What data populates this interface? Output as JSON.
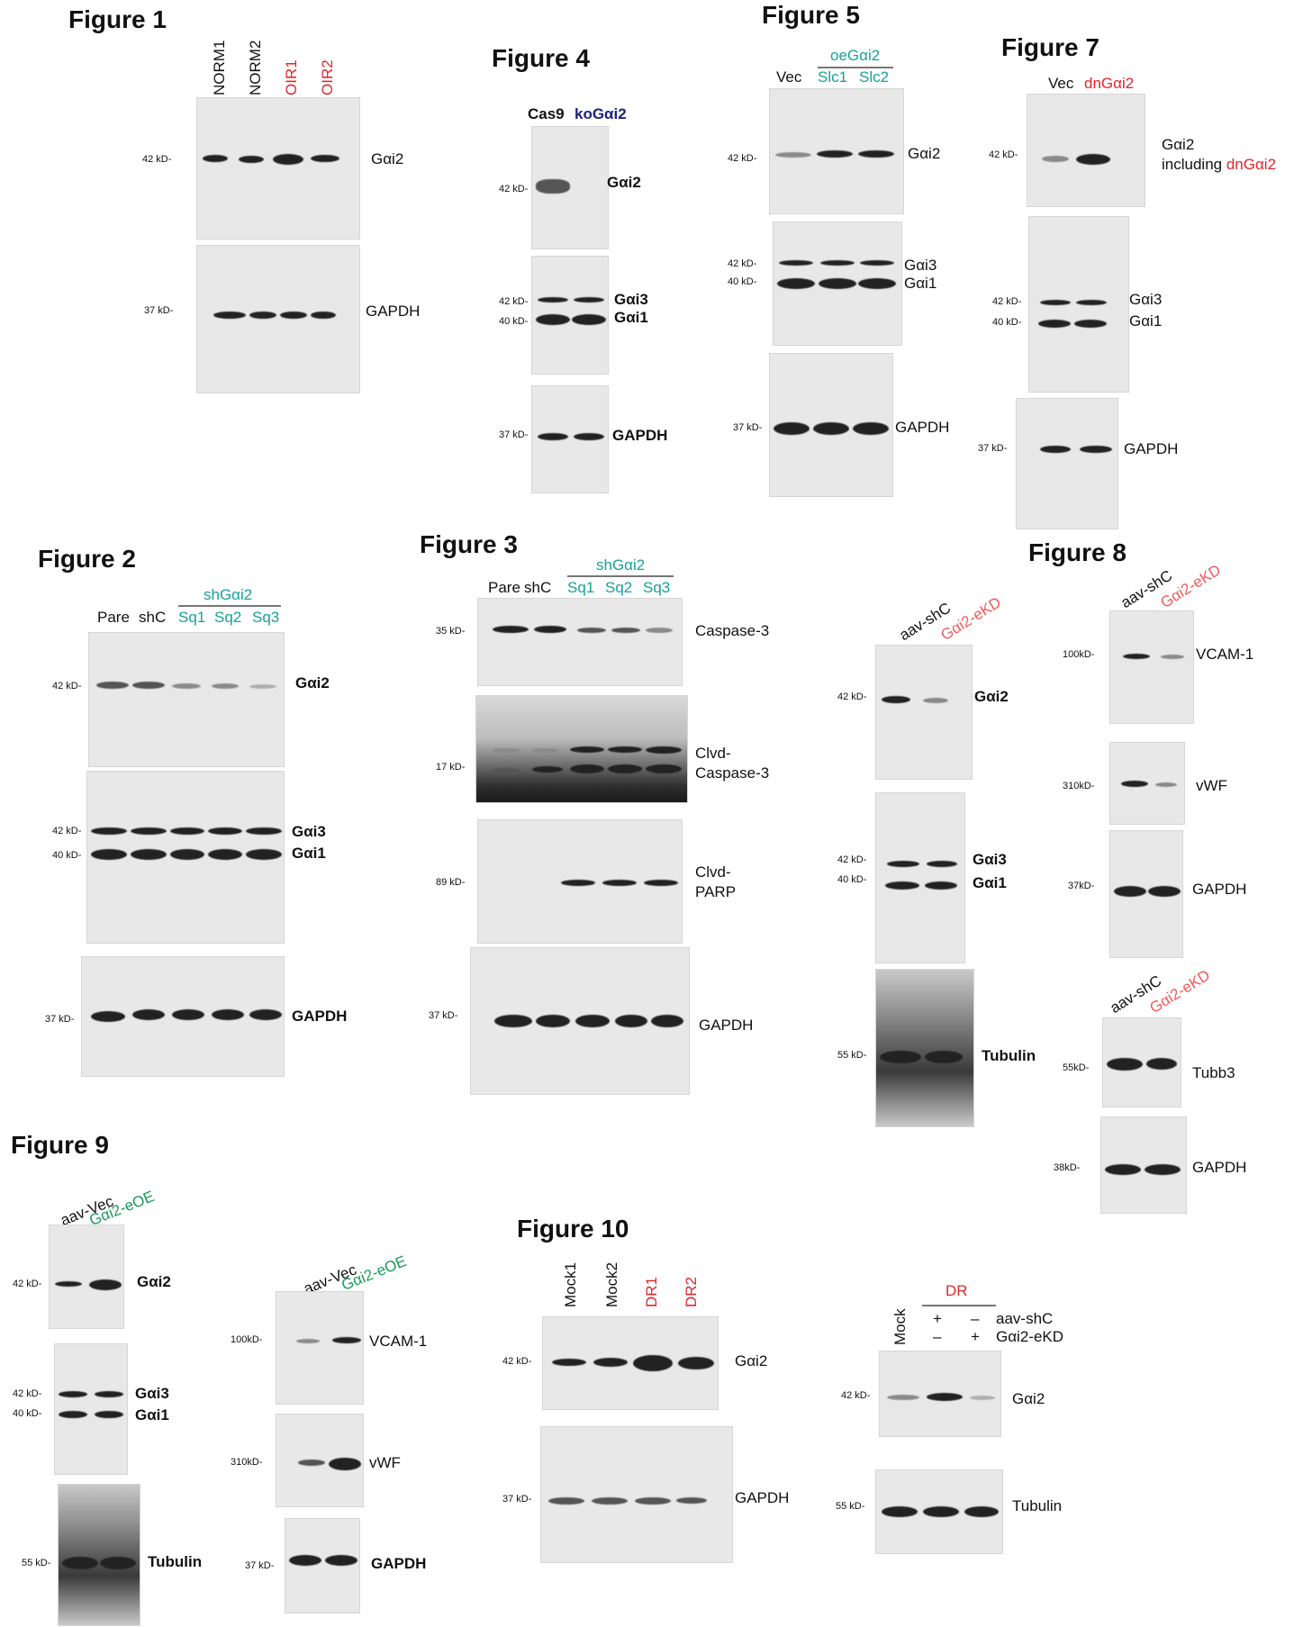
{
  "fig1": {
    "title": "Figure 1",
    "lanes": [
      "NORM1",
      "NORM2",
      "OIR1",
      "OIR2"
    ],
    "mw": [
      "42 kD-",
      "37 kD-"
    ],
    "proteins": [
      "Gαi2",
      "GAPDH"
    ],
    "colors": {
      "control": "#111111",
      "case": "#e0262a"
    }
  },
  "fig4": {
    "title": "Figure 4",
    "lanes": [
      "Cas9",
      "koGαi2"
    ],
    "mw": [
      "42 kD-",
      "42 kD-",
      "40 kD-",
      "37 kD-"
    ],
    "proteins": [
      "Gαi2",
      "Gαi3",
      "Gαi1",
      "GAPDH"
    ]
  },
  "fig5": {
    "title": "Figure 5",
    "group": "oeGαi2",
    "lanes": [
      "Vec",
      "Slc1",
      "Slc2"
    ],
    "mw": [
      "42 kD-",
      "42 kD-",
      "40 kD-",
      "37 kD-"
    ],
    "proteins": [
      "Gαi2",
      "Gαi3",
      "Gαi1",
      "GAPDH"
    ]
  },
  "fig7": {
    "title": "Figure 7",
    "lanes": [
      "Vec",
      "dnGαi2"
    ],
    "mw": [
      "42 kD-",
      "42 kD-",
      "40 kD-",
      "37 kD-"
    ],
    "proteins": [
      "Gαi2",
      "including",
      "dnGαi2",
      "Gαi3",
      "Gαi1",
      "GAPDH"
    ]
  },
  "fig2": {
    "title": "Figure 2",
    "group": "shGαi2",
    "lanes": [
      "Pare",
      "shC",
      "Sq1",
      "Sq2",
      "Sq3"
    ],
    "mw": [
      "42 kD-",
      "42 kD-",
      "40 kD-",
      "37 kD-"
    ],
    "proteins": [
      "Gαi2",
      "Gαi3",
      "Gαi1",
      "GAPDH"
    ]
  },
  "fig3": {
    "title": "Figure 3",
    "group": "shGαi2",
    "lanes": [
      "Pare",
      "shC",
      "Sq1",
      "Sq2",
      "Sq3"
    ],
    "mw": [
      "35 kD-",
      "17 kD-",
      "89 kD-",
      "37 kD-"
    ],
    "proteins": [
      "Caspase-3",
      "Clvd-",
      "Caspase-3",
      "Clvd-",
      "PARP",
      "GAPDH"
    ]
  },
  "fig8": {
    "title": "Figure 8",
    "lanes": [
      "aav-shC",
      "Gαi2-eKD"
    ],
    "mw_left": [
      "42 kD-",
      "42 kD-",
      "40 kD-",
      "55 kD-"
    ],
    "proteins_left": [
      "Gαi2",
      "Gαi3",
      "Gαi1",
      "Tubulin"
    ],
    "mw_right": [
      "100kD-",
      "310kD-",
      "37kD-",
      "55kD-",
      "38kD-"
    ],
    "proteins_right": [
      "VCAM-1",
      "vWF",
      "GAPDH",
      "Tubb3",
      "GAPDH"
    ]
  },
  "fig9": {
    "title": "Figure 9",
    "lanes": [
      "aav-Vec",
      "Gαi2-eOE"
    ],
    "mw_left": [
      "42 kD-",
      "42 kD-",
      "40 kD-",
      "55 kD-"
    ],
    "proteins_left": [
      "Gαi2",
      "Gαi3",
      "Gαi1",
      "Tubulin"
    ],
    "mw_right": [
      "100kD-",
      "310kD-",
      "37 kD-"
    ],
    "proteins_right": [
      "VCAM-1",
      "vWF",
      "GAPDH"
    ]
  },
  "fig10": {
    "title": "Figure 10",
    "lanes": [
      "Mock1",
      "Mock2",
      "DR1",
      "DR2"
    ],
    "mw": [
      "42 kD-",
      "37 kD-"
    ],
    "proteins": [
      "Gαi2",
      "GAPDH"
    ],
    "right": {
      "mock": "Mock",
      "group": "DR",
      "row1": [
        "+",
        "–",
        "aav-shC"
      ],
      "row2": [
        "–",
        "+",
        "Gαi2-eKD"
      ],
      "mw": [
        "42 kD-",
        "55 kD-"
      ],
      "proteins": [
        "Gαi2",
        "Tubulin"
      ]
    }
  }
}
